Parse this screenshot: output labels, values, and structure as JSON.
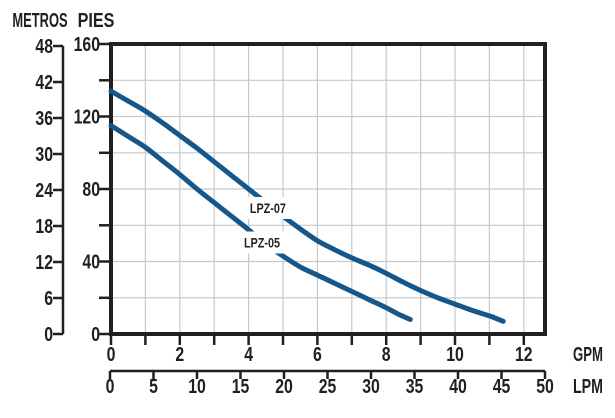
{
  "colors": {
    "curve": "#15578a",
    "axis": "#231f20",
    "grid": "#c7c8ca",
    "background": "#ffffff"
  },
  "chart_data": {
    "type": "line",
    "title": "",
    "grid": {
      "visible": true,
      "x_step_gpm": 1,
      "y_step_pies": 20
    },
    "axes": {
      "y_outer": {
        "label": "METROS",
        "ticks": [
          0,
          6,
          12,
          18,
          24,
          30,
          36,
          42,
          48
        ],
        "range": [
          0,
          48
        ]
      },
      "y_inner": {
        "label": "PIES",
        "labeled_ticks": [
          0,
          40,
          80,
          120,
          160
        ],
        "minor_tick_step": 20,
        "range": [
          0,
          160
        ]
      },
      "x_inner": {
        "label": "GPM",
        "labeled_ticks": [
          0,
          2,
          4,
          6,
          8,
          10,
          12
        ],
        "minor_tick_step": 1,
        "range": [
          0,
          12.6
        ]
      },
      "x_outer": {
        "label": "LPM",
        "labeled_ticks": [
          0,
          5,
          10,
          15,
          20,
          25,
          30,
          35,
          40,
          45,
          50
        ],
        "range": [
          0,
          50
        ]
      }
    },
    "series": [
      {
        "name": "LPZ-07",
        "units": {
          "x": "GPM",
          "y": "PIES"
        },
        "points": [
          [
            0,
            134
          ],
          [
            0.5,
            128.5
          ],
          [
            1,
            123
          ],
          [
            1.5,
            116.5
          ],
          [
            2,
            109.5
          ],
          [
            2.5,
            102.5
          ],
          [
            3,
            95
          ],
          [
            3.5,
            87.5
          ],
          [
            4,
            80
          ],
          [
            4.5,
            72.5
          ],
          [
            5,
            65
          ],
          [
            5.5,
            58
          ],
          [
            6,
            51.5
          ],
          [
            6.5,
            46.5
          ],
          [
            7,
            42
          ],
          [
            7.5,
            38
          ],
          [
            8,
            33.5
          ],
          [
            8.5,
            28.5
          ],
          [
            9,
            24
          ],
          [
            9.5,
            20
          ],
          [
            10,
            16.5
          ],
          [
            10.5,
            13
          ],
          [
            11,
            10
          ],
          [
            11.4,
            7
          ]
        ],
        "label": {
          "text": "LPZ-07",
          "x": 4.56,
          "y": 69.5
        }
      },
      {
        "name": "LPZ-05",
        "units": {
          "x": "GPM",
          "y": "PIES"
        },
        "points": [
          [
            0,
            115
          ],
          [
            0.5,
            109
          ],
          [
            1,
            103
          ],
          [
            1.5,
            95.5
          ],
          [
            2,
            88
          ],
          [
            2.5,
            80
          ],
          [
            3,
            72.5
          ],
          [
            3.5,
            65
          ],
          [
            4,
            57.5
          ],
          [
            4.5,
            49.5
          ],
          [
            5,
            43
          ],
          [
            5.5,
            37
          ],
          [
            6,
            32.5
          ],
          [
            6.5,
            28
          ],
          [
            7,
            23.5
          ],
          [
            7.5,
            19
          ],
          [
            8,
            14.5
          ],
          [
            8.35,
            11
          ],
          [
            8.7,
            8
          ]
        ],
        "label": {
          "text": "LPZ-05",
          "x": 4.39,
          "y": 50.5
        }
      }
    ]
  }
}
